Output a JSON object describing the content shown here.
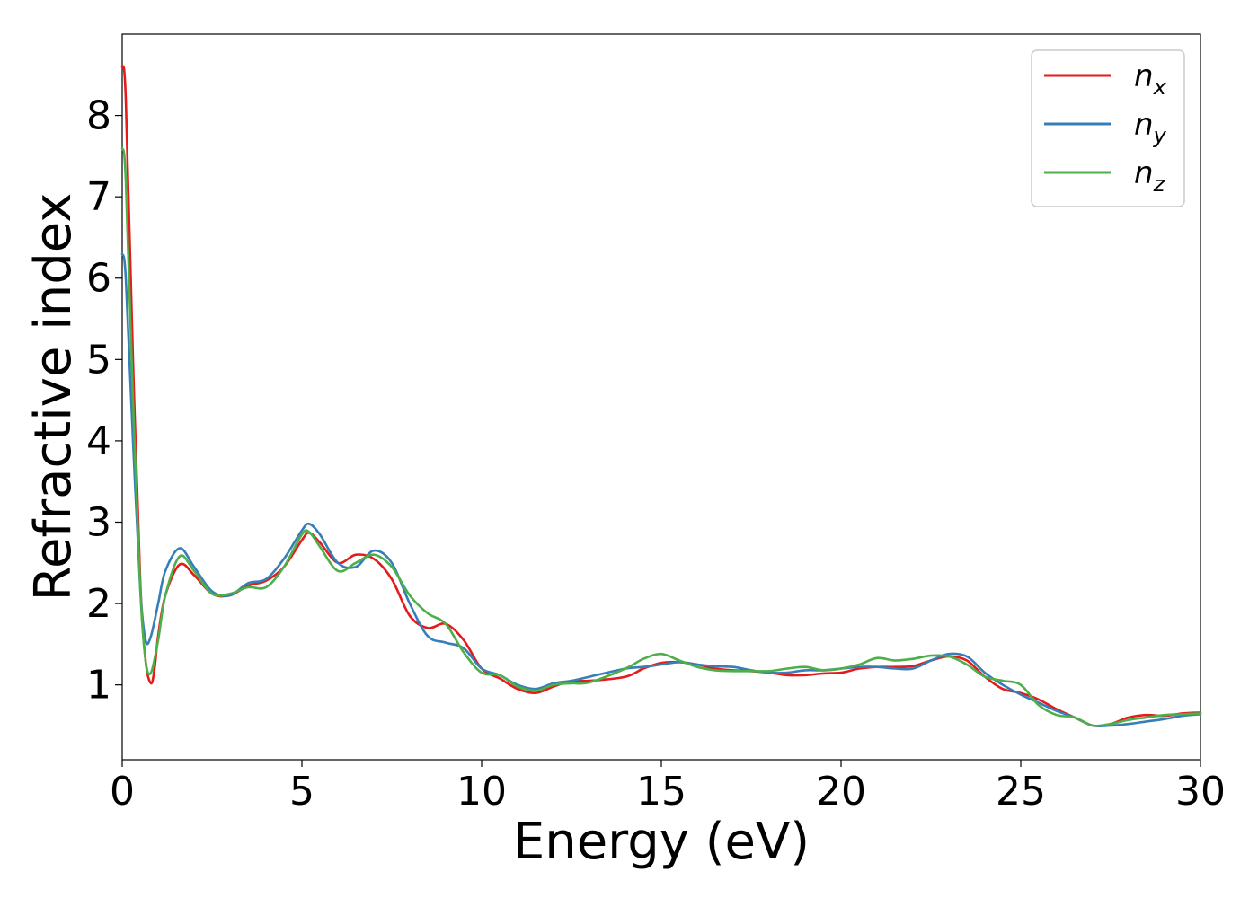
{
  "chart_data": {
    "type": "line",
    "xlabel": "Energy (eV)",
    "ylabel": "Refractive index",
    "xlim": [
      0,
      30
    ],
    "ylim": [
      0.08,
      9.0
    ],
    "xticks": [
      "0",
      "5",
      "10",
      "15",
      "20",
      "25",
      "30"
    ],
    "yticks": [
      "1",
      "2",
      "3",
      "4",
      "5",
      "6",
      "7",
      "8"
    ],
    "grid": false,
    "legend_position": "top-right",
    "series": [
      {
        "name": "n",
        "subscript": "x",
        "color": "#e41a1c",
        "x": [
          0,
          0.1,
          0.3,
          0.5,
          0.65,
          0.8,
          0.9,
          1.0,
          1.2,
          1.6,
          2.0,
          2.5,
          3.0,
          3.5,
          4.0,
          4.5,
          5.0,
          5.2,
          5.5,
          6.0,
          6.5,
          7.0,
          7.5,
          8.0,
          8.5,
          9.0,
          9.5,
          10.0,
          10.5,
          11.0,
          11.5,
          12.0,
          12.5,
          13.0,
          14.0,
          14.5,
          15.0,
          15.5,
          16.0,
          16.5,
          17.0,
          17.5,
          18.0,
          18.5,
          19.0,
          19.5,
          20.0,
          20.5,
          21.0,
          21.5,
          22.0,
          22.5,
          23.0,
          23.5,
          24.0,
          24.5,
          25.0,
          25.5,
          26.0,
          26.5,
          27.0,
          27.5,
          28.0,
          28.5,
          29.0,
          29.5,
          30.0
        ],
        "y": [
          8.6,
          8.2,
          5.0,
          2.3,
          1.3,
          1.02,
          1.2,
          1.6,
          2.1,
          2.48,
          2.35,
          2.12,
          2.1,
          2.22,
          2.28,
          2.45,
          2.78,
          2.87,
          2.75,
          2.5,
          2.6,
          2.55,
          2.3,
          1.85,
          1.7,
          1.75,
          1.55,
          1.2,
          1.08,
          0.95,
          0.9,
          0.98,
          1.05,
          1.05,
          1.1,
          1.2,
          1.27,
          1.28,
          1.25,
          1.2,
          1.18,
          1.17,
          1.15,
          1.12,
          1.12,
          1.14,
          1.15,
          1.2,
          1.22,
          1.22,
          1.23,
          1.3,
          1.35,
          1.3,
          1.1,
          0.95,
          0.9,
          0.82,
          0.7,
          0.6,
          0.5,
          0.52,
          0.6,
          0.63,
          0.62,
          0.65,
          0.66
        ]
      },
      {
        "name": "n",
        "subscript": "y",
        "color": "#377eb8",
        "x": [
          0,
          0.1,
          0.3,
          0.5,
          0.65,
          0.8,
          1.0,
          1.2,
          1.6,
          2.0,
          2.5,
          3.0,
          3.5,
          4.0,
          4.5,
          5.0,
          5.2,
          5.5,
          6.0,
          6.5,
          7.0,
          7.5,
          8.0,
          8.5,
          9.0,
          9.5,
          10.0,
          10.5,
          11.0,
          11.5,
          12.0,
          12.5,
          13.0,
          14.0,
          14.5,
          15.0,
          15.5,
          16.0,
          16.5,
          17.0,
          17.5,
          18.0,
          18.5,
          19.0,
          19.5,
          20.0,
          20.5,
          21.0,
          21.5,
          22.0,
          22.5,
          23.0,
          23.5,
          24.0,
          24.5,
          25.0,
          25.5,
          26.0,
          26.5,
          27.0,
          27.5,
          28.0,
          28.5,
          29.0,
          29.5,
          30.0
        ],
        "y": [
          6.3,
          6.0,
          4.0,
          2.2,
          1.55,
          1.6,
          2.0,
          2.4,
          2.68,
          2.45,
          2.15,
          2.1,
          2.25,
          2.3,
          2.55,
          2.9,
          2.98,
          2.85,
          2.5,
          2.45,
          2.65,
          2.5,
          2.0,
          1.6,
          1.52,
          1.45,
          1.2,
          1.12,
          1.0,
          0.95,
          1.02,
          1.05,
          1.1,
          1.2,
          1.22,
          1.25,
          1.28,
          1.25,
          1.23,
          1.22,
          1.18,
          1.15,
          1.15,
          1.18,
          1.18,
          1.2,
          1.22,
          1.22,
          1.2,
          1.2,
          1.3,
          1.38,
          1.35,
          1.15,
          1.0,
          0.88,
          0.78,
          0.68,
          0.6,
          0.5,
          0.5,
          0.52,
          0.55,
          0.58,
          0.62,
          0.64
        ]
      },
      {
        "name": "n",
        "subscript": "z",
        "color": "#4daf4a",
        "x": [
          0,
          0.1,
          0.3,
          0.5,
          0.65,
          0.8,
          1.0,
          1.2,
          1.6,
          2.0,
          2.5,
          3.0,
          3.5,
          4.0,
          4.5,
          5.0,
          5.2,
          5.5,
          6.0,
          6.5,
          7.0,
          7.5,
          8.0,
          8.5,
          9.0,
          9.5,
          10.0,
          10.5,
          11.0,
          11.5,
          12.0,
          12.5,
          13.0,
          14.0,
          14.5,
          15.0,
          15.5,
          16.0,
          16.5,
          17.0,
          17.5,
          18.0,
          18.5,
          19.0,
          19.5,
          20.0,
          20.5,
          21.0,
          21.5,
          22.0,
          22.5,
          23.0,
          23.5,
          24.0,
          24.5,
          25.0,
          25.5,
          26.0,
          26.5,
          27.0,
          27.5,
          28.0,
          28.5,
          29.0,
          29.5,
          30.0
        ],
        "y": [
          7.6,
          7.2,
          4.5,
          2.2,
          1.3,
          1.15,
          1.55,
          2.1,
          2.58,
          2.4,
          2.12,
          2.12,
          2.2,
          2.2,
          2.45,
          2.85,
          2.88,
          2.7,
          2.4,
          2.5,
          2.6,
          2.45,
          2.1,
          1.88,
          1.75,
          1.4,
          1.15,
          1.12,
          0.98,
          0.93,
          1.0,
          1.02,
          1.03,
          1.2,
          1.32,
          1.38,
          1.3,
          1.22,
          1.18,
          1.17,
          1.17,
          1.17,
          1.2,
          1.22,
          1.18,
          1.2,
          1.25,
          1.33,
          1.3,
          1.32,
          1.36,
          1.35,
          1.25,
          1.1,
          1.05,
          1.0,
          0.75,
          0.63,
          0.6,
          0.5,
          0.52,
          0.57,
          0.6,
          0.63,
          0.64,
          0.65
        ]
      }
    ]
  }
}
